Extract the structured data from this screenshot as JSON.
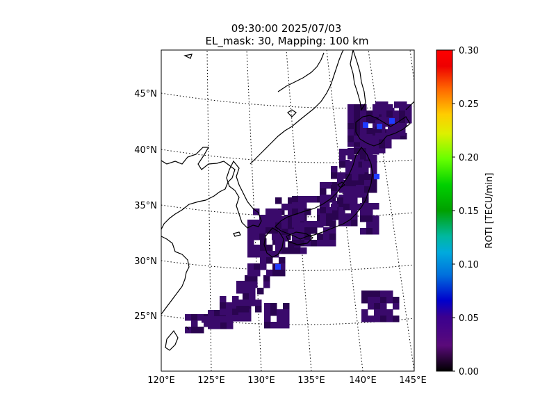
{
  "title": {
    "line1": "09:30:00 2025/07/03",
    "line2": "EL_mask: 30, Mapping: 100 km"
  },
  "map": {
    "lon_ticks": [
      "120°E",
      "125°E",
      "130°E",
      "135°E",
      "140°E",
      "145°E"
    ],
    "lat_ticks": [
      "25°N",
      "30°N",
      "35°N",
      "40°N",
      "45°N"
    ],
    "lon_range": [
      120,
      145
    ],
    "lat_range": [
      20,
      49
    ],
    "graticule": "dotted",
    "cell_color_default": "#3a0a6b",
    "cell_color_dark": "#2a0450",
    "blue_hotspots_color": "#1f3cff"
  },
  "colorbar": {
    "label": "ROTI [TECU/min]",
    "ticks": [
      "0.00",
      "0.05",
      "0.10",
      "0.15",
      "0.20",
      "0.25",
      "0.30"
    ],
    "range": [
      0.0,
      0.3
    ],
    "colormap": "nipy_spectral"
  }
}
